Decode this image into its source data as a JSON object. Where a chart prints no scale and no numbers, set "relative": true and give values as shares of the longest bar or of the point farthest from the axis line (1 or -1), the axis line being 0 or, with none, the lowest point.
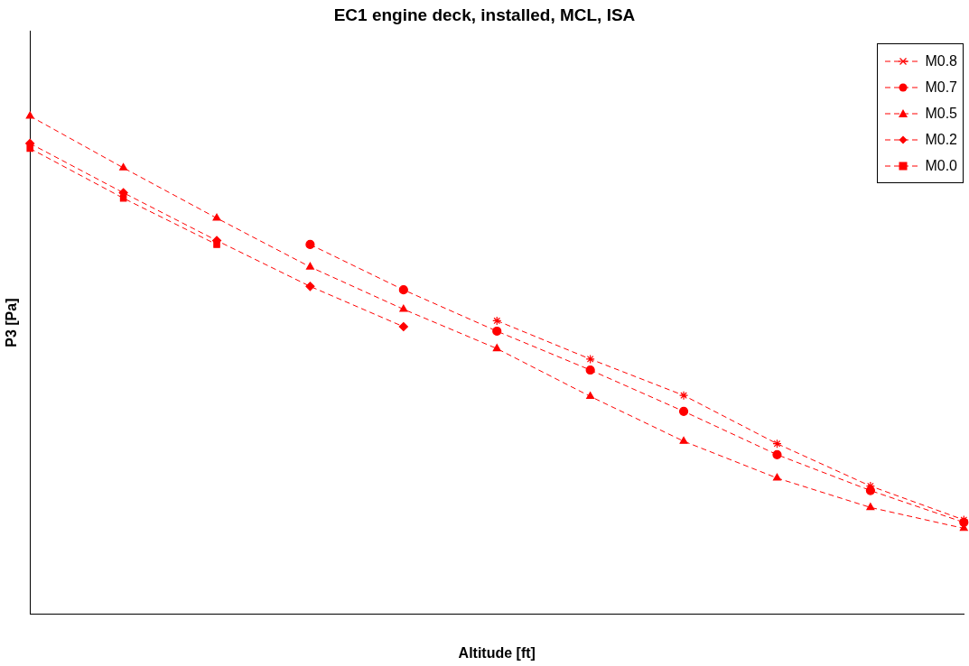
{
  "chart_data": {
    "type": "line",
    "title": "EC1 engine deck, installed, MCL, ISA",
    "xlabel": "Altitude [ft]",
    "ylabel": "P3 [Pa]",
    "relative": true,
    "categories": [
      null,
      null,
      null,
      null,
      null,
      null,
      null,
      null,
      null,
      null,
      null
    ],
    "series": [
      {
        "name": "M0.8",
        "color": "#ff0000",
        "marker": "cross",
        "values": [
          null,
          null,
          null,
          null,
          null,
          0.589,
          0.512,
          0.439,
          0.342,
          0.257,
          0.189
        ]
      },
      {
        "name": "M0.7",
        "color": "#ff0000",
        "marker": "circle",
        "values": [
          null,
          null,
          null,
          0.742,
          0.651,
          0.568,
          0.49,
          0.407,
          0.32,
          0.248,
          0.184
        ]
      },
      {
        "name": "M0.5",
        "color": "#ff0000",
        "marker": "triangle",
        "values": [
          1,
          0.896,
          0.795,
          0.697,
          0.612,
          0.533,
          0.437,
          0.347,
          0.273,
          0.214,
          0.172
        ]
      },
      {
        "name": "M0.2",
        "color": "#ff0000",
        "marker": "diamond",
        "values": [
          0.945,
          0.846,
          0.75,
          0.658,
          0.577,
          null,
          null,
          null,
          null,
          null,
          null
        ]
      },
      {
        "name": "M0.0",
        "color": "#ff0000",
        "marker": "square",
        "values": [
          0.935,
          0.835,
          0.742,
          null,
          null,
          null,
          null,
          null,
          null,
          null,
          null
        ]
      }
    ],
    "line_style": "dashed",
    "legend": "top right",
    "grid": false
  }
}
